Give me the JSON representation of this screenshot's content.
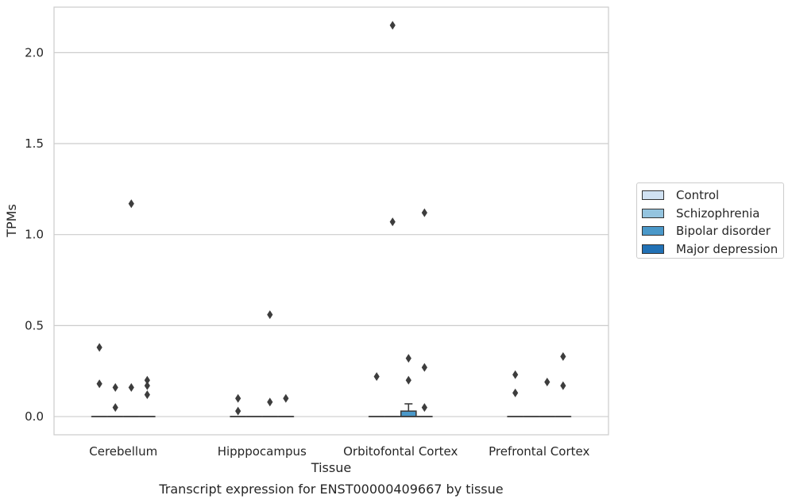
{
  "chart_data": {
    "type": "box",
    "title": "Transcript expression for ENST00000409667 by tissue",
    "xlabel": "Tissue",
    "ylabel": "TPMs",
    "categories": [
      "Cerebellum",
      "Hipppocampus",
      "Orbitofontal Cortex",
      "Prefrontal Cortex"
    ],
    "ylim": [
      -0.1,
      2.25
    ],
    "yticks": [
      0.0,
      0.5,
      1.0,
      1.5,
      2.0
    ],
    "ytick_labels": [
      "0.0",
      "0.5",
      "1.0",
      "1.5",
      "2.0"
    ],
    "grid": true,
    "legend_position": "right",
    "series": [
      {
        "name": "Control",
        "color": "#d0e1f2",
        "boxes": [
          {
            "category": "Cerebellum",
            "q1": 0,
            "median": 0,
            "q3": 0,
            "whisker_low": 0,
            "whisker_high": 0,
            "outliers": [
              0.38,
              0.18
            ]
          },
          {
            "category": "Hipppocampus",
            "q1": 0,
            "median": 0,
            "q3": 0,
            "whisker_low": 0,
            "whisker_high": 0,
            "outliers": [
              0.1,
              0.03
            ]
          },
          {
            "category": "Orbitofontal Cortex",
            "q1": 0,
            "median": 0,
            "q3": 0,
            "whisker_low": 0,
            "whisker_high": 0,
            "outliers": [
              0.22
            ]
          },
          {
            "category": "Prefrontal Cortex",
            "q1": 0,
            "median": 0,
            "q3": 0,
            "whisker_low": 0,
            "whisker_high": 0,
            "outliers": [
              0.23,
              0.13
            ]
          }
        ]
      },
      {
        "name": "Schizophrenia",
        "color": "#94c4df",
        "boxes": [
          {
            "category": "Cerebellum",
            "q1": 0,
            "median": 0,
            "q3": 0,
            "whisker_low": 0,
            "whisker_high": 0,
            "outliers": [
              0.16,
              0.05
            ]
          },
          {
            "category": "Hipppocampus",
            "q1": 0,
            "median": 0,
            "q3": 0,
            "whisker_low": 0,
            "whisker_high": 0,
            "outliers": []
          },
          {
            "category": "Orbitofontal Cortex",
            "q1": 0,
            "median": 0,
            "q3": 0,
            "whisker_low": 0,
            "whisker_high": 0,
            "outliers": [
              2.15,
              1.07
            ]
          },
          {
            "category": "Prefrontal Cortex",
            "q1": 0,
            "median": 0,
            "q3": 0,
            "whisker_low": 0,
            "whisker_high": 0,
            "outliers": []
          }
        ]
      },
      {
        "name": "Bipolar disorder",
        "color": "#4a98c9",
        "boxes": [
          {
            "category": "Cerebellum",
            "q1": 0,
            "median": 0,
            "q3": 0,
            "whisker_low": 0,
            "whisker_high": 0,
            "outliers": [
              1.17,
              0.16
            ]
          },
          {
            "category": "Hipppocampus",
            "q1": 0,
            "median": 0,
            "q3": 0,
            "whisker_low": 0,
            "whisker_high": 0,
            "outliers": [
              0.56,
              0.08
            ]
          },
          {
            "category": "Orbitofontal Cortex",
            "q1": 0,
            "median": 0,
            "q3": 0.03,
            "whisker_low": 0,
            "whisker_high": 0.07,
            "outliers": [
              0.32,
              0.2
            ]
          },
          {
            "category": "Prefrontal Cortex",
            "q1": 0,
            "median": 0,
            "q3": 0,
            "whisker_low": 0,
            "whisker_high": 0,
            "outliers": [
              0.19
            ]
          }
        ]
      },
      {
        "name": "Major depression",
        "color": "#2171b5",
        "boxes": [
          {
            "category": "Cerebellum",
            "q1": 0,
            "median": 0,
            "q3": 0,
            "whisker_low": 0,
            "whisker_high": 0,
            "outliers": [
              0.2,
              0.17,
              0.12
            ]
          },
          {
            "category": "Hipppocampus",
            "q1": 0,
            "median": 0,
            "q3": 0,
            "whisker_low": 0,
            "whisker_high": 0,
            "outliers": [
              0.1
            ]
          },
          {
            "category": "Orbitofontal Cortex",
            "q1": 0,
            "median": 0,
            "q3": 0,
            "whisker_low": 0,
            "whisker_high": 0,
            "outliers": [
              1.12,
              0.27,
              0.05
            ]
          },
          {
            "category": "Prefrontal Cortex",
            "q1": 0,
            "median": 0,
            "q3": 0,
            "whisker_low": 0,
            "whisker_high": 0,
            "outliers": [
              0.33,
              0.17
            ]
          }
        ]
      }
    ]
  }
}
